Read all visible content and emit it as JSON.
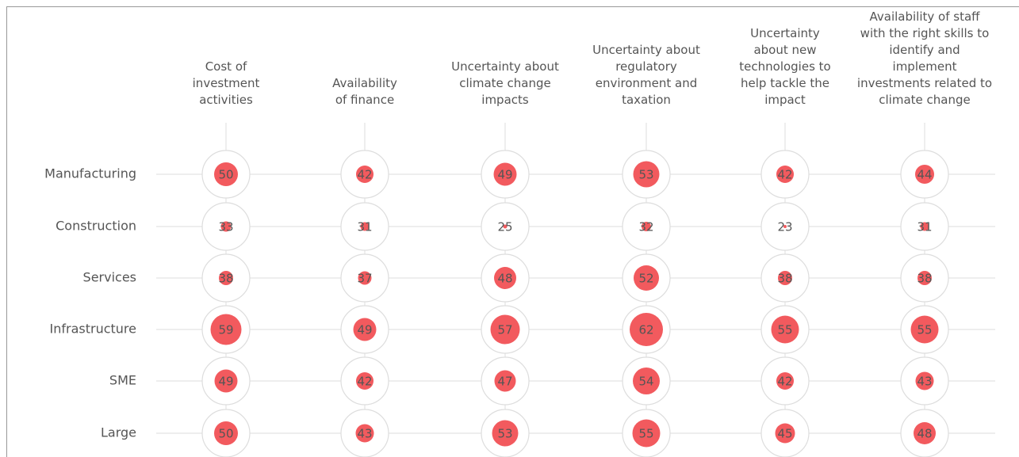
{
  "chart_data": {
    "type": "bubble",
    "categories": [
      "Cost of investment activities",
      "Availability of finance",
      "Uncertainty about climate change impacts",
      "Uncertainty about regulatory environment and taxation",
      "Uncertainty about new technologies to help tackle the impact",
      "Availability of staff with the right skills to identify and implement investments related to climate change"
    ],
    "color": "#f25a5e",
    "series": [
      {
        "name": "Manufacturing",
        "values": [
          50,
          42,
          49,
          53,
          42,
          44
        ]
      },
      {
        "name": "Construction",
        "values": [
          33,
          31,
          25,
          32,
          23,
          31
        ]
      },
      {
        "name": "Services",
        "values": [
          38,
          37,
          48,
          52,
          38,
          38
        ]
      },
      {
        "name": "Infrastructure",
        "values": [
          59,
          49,
          57,
          62,
          55,
          55
        ]
      },
      {
        "name": "SME",
        "values": [
          49,
          42,
          47,
          54,
          42,
          43
        ]
      },
      {
        "name": "Large",
        "values": [
          50,
          43,
          53,
          55,
          45,
          48
        ]
      }
    ]
  }
}
